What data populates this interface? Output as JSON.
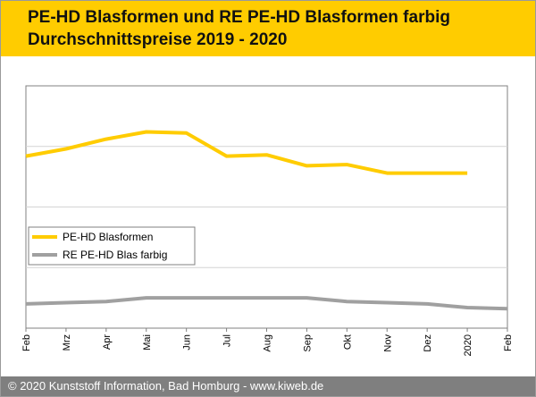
{
  "header": {
    "title_line1": "PE-HD Blasformen und RE PE-HD Blasformen farbig",
    "title_line2": "Durchschnittspreise 2019 - 2020"
  },
  "footer": {
    "text": "© 2020 Kunststoff Information, Bad Homburg - www.kiweb.de"
  },
  "colors": {
    "header_bg": "#ffcc00",
    "footer_bg": "#7f7f7f",
    "series1": "#ffcc00",
    "series2": "#a0a0a0"
  },
  "chart_data": {
    "type": "line",
    "title": "",
    "xlabel": "",
    "ylabel": "",
    "ylim": [
      0,
      100
    ],
    "grid": "horizontal",
    "legend_position": "middle-left",
    "categories": [
      "Feb",
      "Mrz",
      "Apr",
      "Mai",
      "Jun",
      "Jul",
      "Aug",
      "Sep",
      "Okt",
      "Nov",
      "Dez",
      "2020",
      "Feb"
    ],
    "series": [
      {
        "name": "PE-HD Blasformen",
        "color": "#ffcc00",
        "values": [
          71,
          74,
          78,
          81,
          80.5,
          71,
          71.5,
          67,
          67.5,
          64,
          64,
          64,
          null
        ]
      },
      {
        "name": "RE PE-HD Blas farbig",
        "color": "#a0a0a0",
        "values": [
          10,
          10.5,
          11,
          12.5,
          12.5,
          12.5,
          12.5,
          12.5,
          11,
          10.5,
          10,
          8.5,
          8
        ]
      }
    ]
  }
}
